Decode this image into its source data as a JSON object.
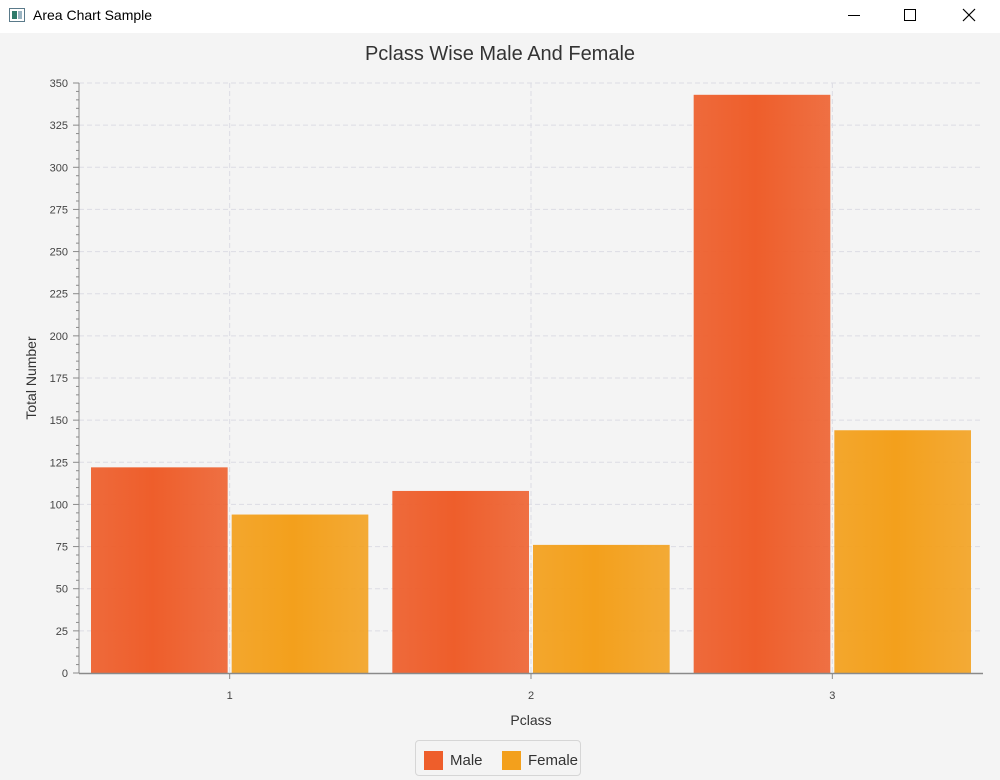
{
  "window": {
    "title": "Area Chart Sample"
  },
  "icons": {
    "app": "java-app-icon",
    "minimize": "minimize-icon",
    "maximize": "maximize-icon",
    "close": "close-icon"
  },
  "colors": {
    "male": "#ee5e2b",
    "female": "#f3a01c",
    "grid": "#dcdce4",
    "axis": "#8a8a8a"
  },
  "chart_data": {
    "type": "bar",
    "title": "Pclass Wise Male And Female",
    "xlabel": "Pclass",
    "ylabel": "Total Number",
    "categories": [
      "1",
      "2",
      "3"
    ],
    "series": [
      {
        "name": "Male",
        "values": [
          122,
          108,
          343
        ]
      },
      {
        "name": "Female",
        "values": [
          94,
          76,
          144
        ]
      }
    ],
    "ylim": [
      0,
      350
    ],
    "ytick_step": 25,
    "grid": true,
    "legend_position": "bottom"
  }
}
